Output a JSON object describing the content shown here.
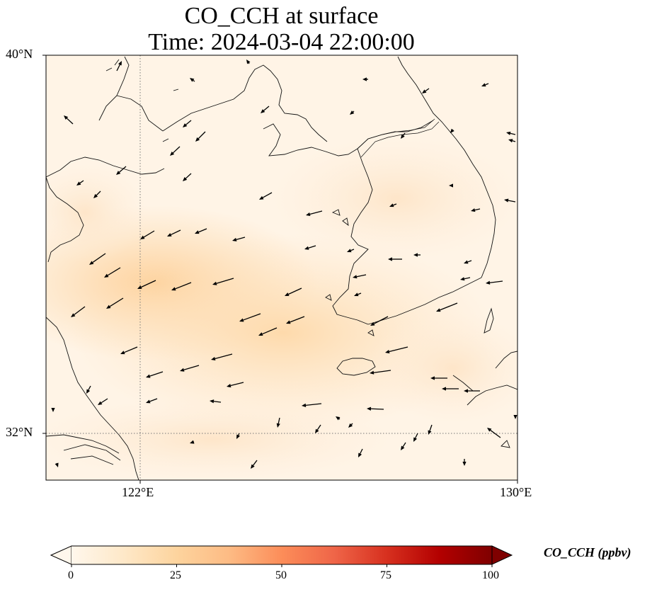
{
  "title": {
    "line1": "CO_CCH at surface",
    "line2": "Time: 2024-03-04 22:00:00"
  },
  "map": {
    "lat_labels": [
      "40°N",
      "32°N"
    ],
    "lon_labels": [
      "122°E",
      "130°E"
    ],
    "extent": {
      "lon": [
        120,
        130
      ],
      "lat": [
        31,
        40
      ]
    },
    "gridlines": {
      "lons": [
        122
      ],
      "lats": [
        32
      ],
      "style": "dotted"
    }
  },
  "colorbar": {
    "title": "CO_CCH (ppbv)",
    "ticks": [
      "0",
      "25",
      "50",
      "75",
      "100"
    ],
    "colormap": "OrRd",
    "range": [
      0,
      100
    ],
    "extend": "both",
    "colors": [
      "#fff7ec",
      "#fee8c8",
      "#fdd49e",
      "#fdbb84",
      "#fc8d59",
      "#ef6548",
      "#d7301f",
      "#b30000",
      "#7f0000"
    ]
  }
}
